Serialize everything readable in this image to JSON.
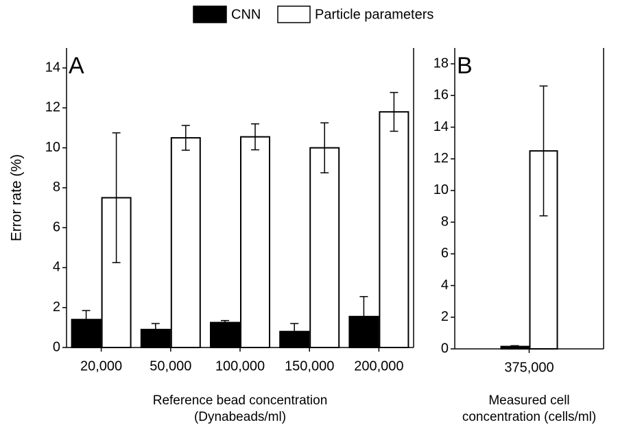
{
  "chart_data": [
    {
      "type": "bar",
      "panel": "A",
      "ylabel": "Error rate (%)",
      "xlabel": [
        "Reference bead concentration",
        "(Dynabeads/ml)"
      ],
      "categories": [
        "20,000",
        "50,000",
        "100,000",
        "150,000",
        "200,000"
      ],
      "series": [
        {
          "name": "CNN",
          "color": "#000000",
          "edgecolor": "#000000",
          "values": [
            1.4,
            0.9,
            1.25,
            0.8,
            1.55
          ],
          "errors": [
            0.45,
            0.3,
            0.1,
            0.4,
            1.0
          ]
        },
        {
          "name": "Particle parameters",
          "color": "#ffffff",
          "edgecolor": "#000000",
          "values": [
            7.5,
            10.5,
            10.55,
            10.0,
            11.8
          ],
          "errors": [
            3.25,
            0.62,
            0.65,
            1.25,
            0.97
          ]
        }
      ],
      "ylim": [
        0,
        15
      ],
      "yticks": [
        0,
        2,
        4,
        6,
        8,
        10,
        12,
        14
      ]
    },
    {
      "type": "bar",
      "panel": "B",
      "xlabel": [
        "Measured cell",
        "concentration (cells/ml)"
      ],
      "categories": [
        "375,000"
      ],
      "series": [
        {
          "color": "#000000",
          "edgecolor": "#000000",
          "values": [
            0.15
          ],
          "errors": [
            0.05
          ]
        },
        {
          "color": "#ffffff",
          "edgecolor": "#000000",
          "values": [
            12.5
          ],
          "errors": [
            4.1
          ]
        }
      ],
      "ylim": [
        0,
        19
      ],
      "yticks": [
        0,
        2,
        4,
        6,
        8,
        10,
        12,
        14,
        16,
        18
      ]
    }
  ]
}
